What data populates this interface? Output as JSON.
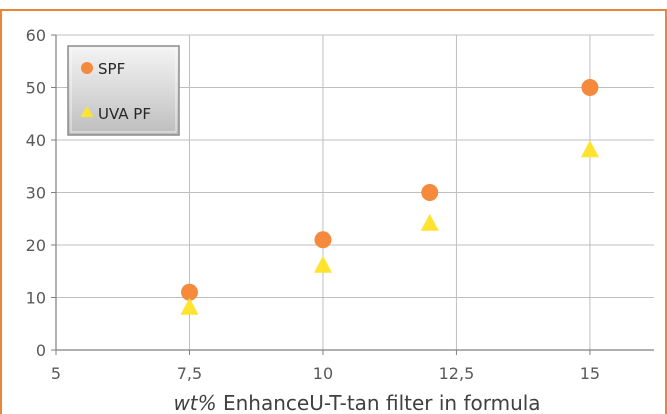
{
  "chart_data": {
    "type": "scatter",
    "title": "",
    "xlabel_italic": "wt%",
    "xlabel_rest": " EnhanceU-T-tan filter in formula",
    "ylabel": "",
    "xlim": [
      5,
      16.2
    ],
    "ylim": [
      0,
      60
    ],
    "x_ticks": [
      5,
      7.5,
      10,
      12.5,
      15
    ],
    "x_tick_labels": [
      "5",
      "7,5",
      "10",
      "12,5",
      "15"
    ],
    "y_ticks": [
      0,
      10,
      20,
      30,
      40,
      50,
      60
    ],
    "y_tick_labels": [
      "0",
      "10",
      "20",
      "30",
      "40",
      "50",
      "60"
    ],
    "grid": true,
    "legend_position": "top-left",
    "series": [
      {
        "name": "SPF",
        "marker": "circle",
        "color": "#F58A3C",
        "x": [
          7.5,
          10,
          12,
          15
        ],
        "y": [
          11,
          21,
          30,
          50
        ]
      },
      {
        "name": "UVA PF",
        "marker": "triangle",
        "color": "#FFE32E",
        "x": [
          7.5,
          10,
          12,
          15
        ],
        "y": [
          8,
          16,
          24,
          38
        ]
      }
    ]
  },
  "colors": {
    "frame_border": "#E8863A",
    "grid": "#BFBFBF",
    "axis": "#808080"
  }
}
